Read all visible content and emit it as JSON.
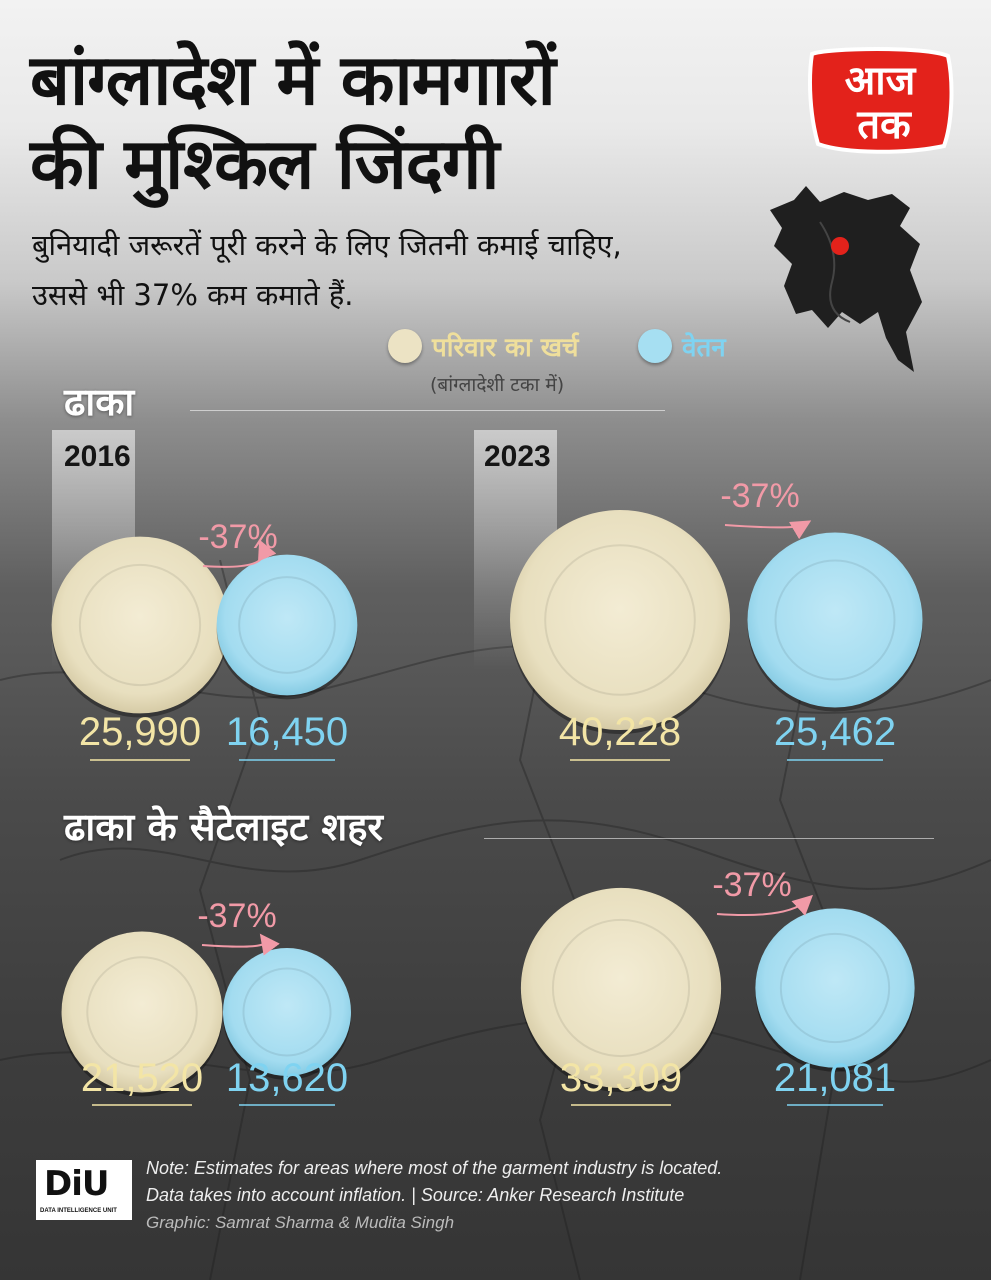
{
  "header": {
    "title_line1": "बांग्लादेश में कामगारों",
    "title_line2": "की मुश्किल जिंदगी",
    "subtitle_line1": "बुनियादी जरूरतें पूरी करने के लिए जितनी कमाई चाहिए,",
    "subtitle_line2": "उससे भी 37% कम कमाते हैं."
  },
  "logo": {
    "line1": "आज",
    "line2": "तक"
  },
  "legend": {
    "expense_label": "परिवार का खर्च",
    "salary_label": "वेतन",
    "unit": "(बांग्लादेशी टका में)"
  },
  "colors": {
    "expense": "#ece3c4",
    "salary": "#a6dff2",
    "expense_text": "#f3e5a6",
    "salary_text": "#7fd3f1",
    "pct": "#f19aa7",
    "logo_red": "#e3221b"
  },
  "sections": {
    "dhaka": "ढाका",
    "satellite": "ढाका के सैटेलाइट शहर"
  },
  "years": {
    "y1": "2016",
    "y2": "2023"
  },
  "chart_data": {
    "type": "bubble",
    "unit": "बांग्लादेशी टका",
    "years": [
      "2016",
      "2023"
    ],
    "groups": [
      {
        "name": "ढाका",
        "expense": [
          25990,
          16450,
          40228,
          25462
        ]
      }
    ],
    "panels": [
      {
        "region": "ढाका",
        "year": "2016",
        "expense": 25990,
        "salary": 16450,
        "expense_label": "25,990",
        "salary_label": "16,450",
        "gap": "-37%"
      },
      {
        "region": "ढाका",
        "year": "2023",
        "expense": 40228,
        "salary": 25462,
        "expense_label": "40,228",
        "salary_label": "25,462",
        "gap": "-37%"
      },
      {
        "region": "ढाका के सैटेलाइट शहर",
        "year": "2016",
        "expense": 21520,
        "salary": 13620,
        "expense_label": "21,520",
        "salary_label": "13,620",
        "gap": "-37%"
      },
      {
        "region": "ढाका के सैटेलाइट शहर",
        "year": "2023",
        "expense": 33309,
        "salary": 21081,
        "expense_label": "33,309",
        "salary_label": "21,081",
        "gap": "-37%"
      }
    ]
  },
  "footer": {
    "diu_main": "DiU",
    "diu_sub": "DATA INTELLIGENCE UNIT",
    "note_line1": "Note: Estimates for areas where most of the garment industry is located.",
    "note_line2": "Data takes into account inflation.  |  Source: Anker Research Institute",
    "credit": "Graphic: Samrat Sharma & Mudita Singh"
  }
}
